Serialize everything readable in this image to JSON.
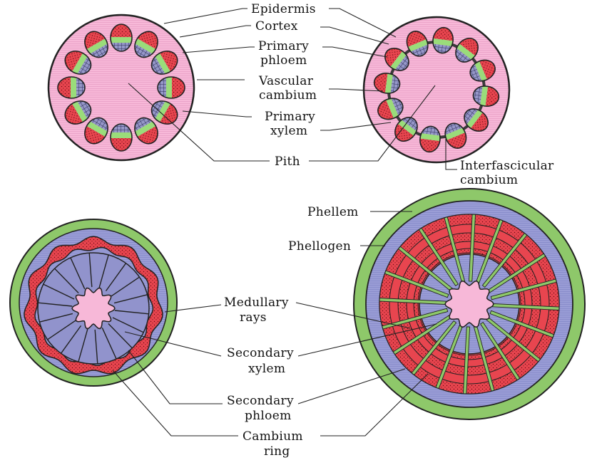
{
  "colors": {
    "pith": "#f7b8d8",
    "cortex": "#f4a7cb",
    "xylem_block": "#e8454f",
    "phloem_block": "#5a5b8e",
    "cambium": "#9adc7a",
    "periderm": "#8ec86a",
    "secondary_xylem": "#9a9dd6",
    "outline": "#222222"
  },
  "labels": {
    "epidermis": "Epidermis",
    "cortex": "Cortex",
    "primary_phloem_1": "Primary",
    "primary_phloem_2": "phloem",
    "vascular_cambium_1": "Vascular",
    "vascular_cambium_2": "cambium",
    "primary_xylem_1": "Primary",
    "primary_xylem_2": "xylem",
    "pith": "Pith",
    "interfascicular_1": "Interfascicular",
    "interfascicular_2": "cambium",
    "phellem": "Phellem",
    "phellogen": "Phellogen",
    "medullary_1": "Medullary",
    "medullary_2": "rays",
    "secondary_xylem_1": "Secondary",
    "secondary_xylem_2": "xylem",
    "secondary_phloem_1": "Secondary",
    "secondary_phloem_2": "phloem",
    "cambium_ring_1": "Cambium",
    "cambium_ring_2": "ring"
  }
}
